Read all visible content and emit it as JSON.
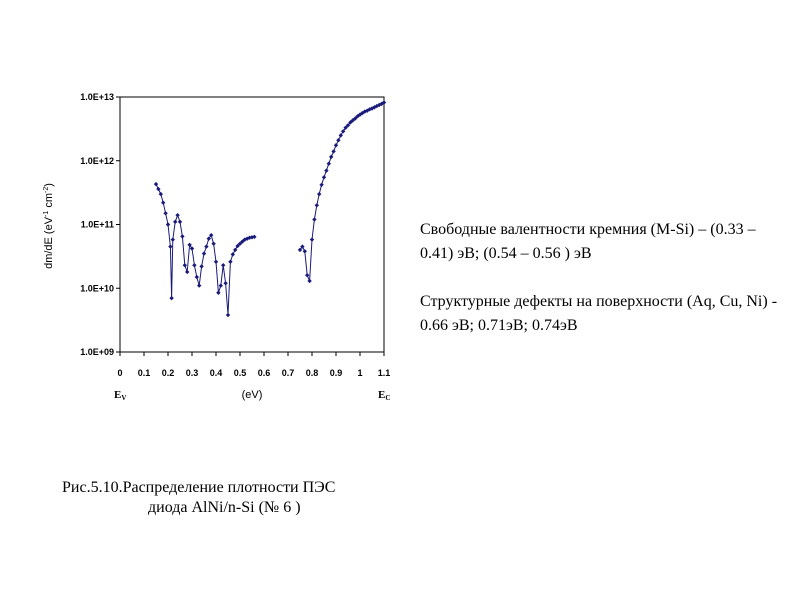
{
  "chart_data": {
    "type": "scatter",
    "y_scale": "log",
    "ylim": [
      1000000000.0,
      10000000000000.0
    ],
    "xlim": [
      0,
      1.1
    ],
    "ylabel_main": "dm/dE (eV",
    "ylabel_sup1": "-1",
    "ylabel_mid": " cm",
    "ylabel_sup2": "-2",
    "ylabel_end": ")",
    "xlabel": "(eV)",
    "y_ticks": [
      {
        "value": 10000000000000.0,
        "label": "1.0E+13"
      },
      {
        "value": 1000000000000.0,
        "label": "1.0E+12"
      },
      {
        "value": 100000000000.0,
        "label": "1.0E+11"
      },
      {
        "value": 10000000000.0,
        "label": "1.0E+10"
      },
      {
        "value": 1000000000.0,
        "label": "1.0E+09"
      }
    ],
    "x_ticks": [
      {
        "value": 0,
        "label": "0"
      },
      {
        "value": 0.1,
        "label": "0.1"
      },
      {
        "value": 0.2,
        "label": "0.2"
      },
      {
        "value": 0.3,
        "label": "0.3"
      },
      {
        "value": 0.4,
        "label": "0.4"
      },
      {
        "value": 0.5,
        "label": "0.5"
      },
      {
        "value": 0.6,
        "label": "0.6"
      },
      {
        "value": 0.7,
        "label": "0.7"
      },
      {
        "value": 0.8,
        "label": "0.8"
      },
      {
        "value": 0.9,
        "label": "0.9"
      },
      {
        "value": 1.0,
        "label": "1"
      },
      {
        "value": 1.1,
        "label": "1.1"
      }
    ],
    "band_labels": [
      {
        "value": 0,
        "main": "E",
        "sub": "V"
      },
      {
        "value": 1.1,
        "main": "E",
        "sub": "C"
      }
    ],
    "series_color": "#1a1a7a",
    "series": [
      {
        "x": [
          0.15,
          0.16,
          0.17,
          0.18,
          0.19,
          0.2,
          0.21,
          0.215,
          0.22,
          0.23,
          0.24,
          0.25,
          0.26,
          0.27,
          0.28,
          0.29,
          0.3,
          0.31,
          0.32,
          0.33,
          0.34,
          0.35,
          0.36,
          0.37,
          0.38,
          0.39,
          0.4,
          0.41,
          0.42,
          0.43,
          0.44,
          0.45,
          0.46,
          0.47,
          0.48,
          0.49,
          0.5,
          0.51,
          0.52,
          0.53,
          0.54,
          0.55,
          0.56
        ],
        "y": [
          430000000000.0,
          360000000000.0,
          300000000000.0,
          220000000000.0,
          150000000000.0,
          100000000000.0,
          45000000000.0,
          7000000000.0,
          58000000000.0,
          110000000000.0,
          140000000000.0,
          110000000000.0,
          65000000000.0,
          23000000000.0,
          18000000000.0,
          48000000000.0,
          42000000000.0,
          23000000000.0,
          15000000000.0,
          11000000000.0,
          22000000000.0,
          35000000000.0,
          45000000000.0,
          60000000000.0,
          68000000000.0,
          50000000000.0,
          26000000000.0,
          8500000000.0,
          11000000000.0,
          23000000000.0,
          12000000000.0,
          3800000000.0,
          26000000000.0,
          34000000000.0,
          40000000000.0,
          46000000000.0,
          50000000000.0,
          54000000000.0,
          58000000000.0,
          60000000000.0,
          62000000000.0,
          63000000000.0,
          64000000000.0
        ]
      },
      {
        "x": [
          0.75,
          0.76,
          0.77,
          0.78,
          0.79,
          0.8,
          0.81,
          0.82,
          0.83,
          0.84,
          0.85,
          0.86,
          0.87,
          0.88,
          0.89,
          0.9,
          0.91,
          0.92,
          0.93,
          0.94,
          0.95,
          0.96,
          0.97,
          0.98,
          0.99,
          1.0,
          1.01,
          1.02,
          1.03,
          1.04,
          1.05,
          1.06,
          1.07,
          1.08,
          1.09,
          1.1
        ],
        "y": [
          40000000000.0,
          45000000000.0,
          38000000000.0,
          16000000000.0,
          13000000000.0,
          58000000000.0,
          120000000000.0,
          200000000000.0,
          300000000000.0,
          420000000000.0,
          550000000000.0,
          700000000000.0,
          900000000000.0,
          1150000000000.0,
          1400000000000.0,
          1750000000000.0,
          2100000000000.0,
          2500000000000.0,
          2900000000000.0,
          3300000000000.0,
          3600000000000.0,
          4000000000000.0,
          4300000000000.0,
          4600000000000.0,
          5000000000000.0,
          5300000000000.0,
          5600000000000.0,
          5900000000000.0,
          6100000000000.0,
          6400000000000.0,
          6600000000000.0,
          6900000000000.0,
          7200000000000.0,
          7500000000000.0,
          7800000000000.0,
          8200000000000.0
        ]
      }
    ]
  },
  "notes": {
    "line1": "Свободные  валентности кремния (М-Si) – (0.33 – 0.41) эВ; (0.54 – 0.56 ) эВ",
    "line2": "Структурные дефекты на поверхности (Aq, Cu, Ni) - 0.66 эВ;  0.71эВ; 0.74эВ"
  },
  "caption": {
    "line1": "Рис.5.10.Распределение  плотности ПЭС",
    "line2": "диода AlNi/n-Si (№ 6 )"
  }
}
